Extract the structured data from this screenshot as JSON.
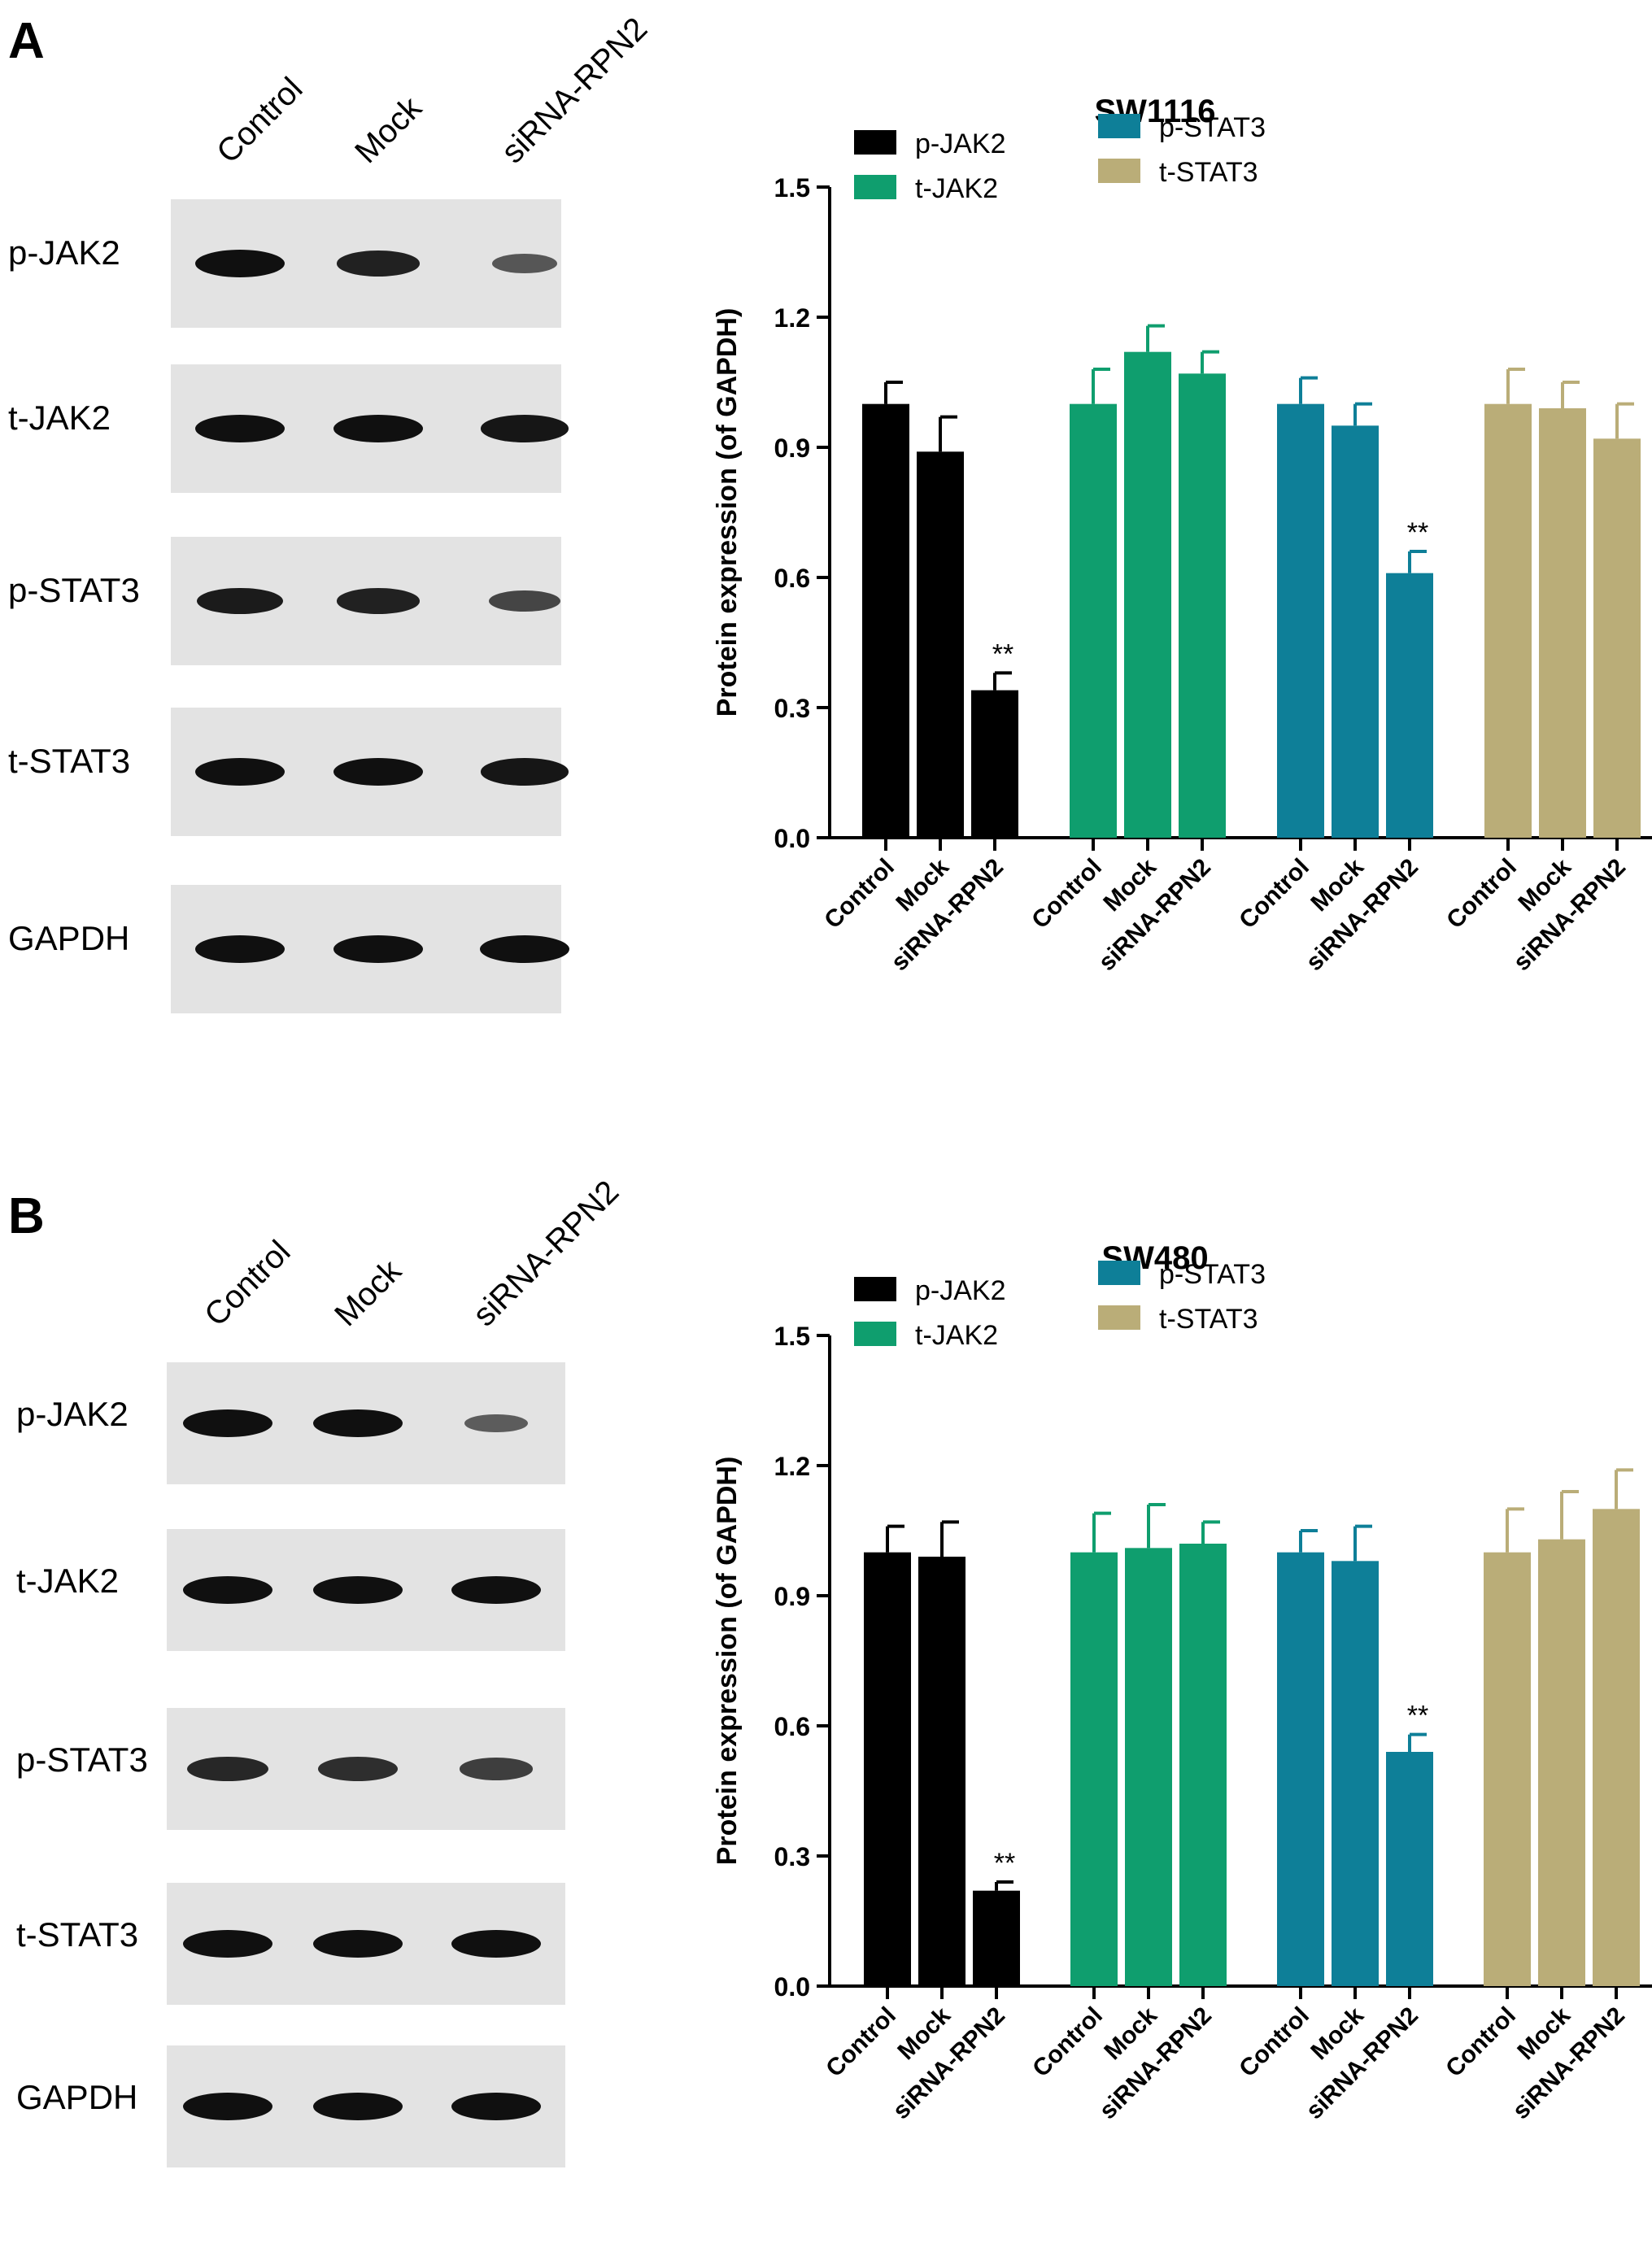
{
  "panels": [
    {
      "letter": "A",
      "blot": {
        "lanes": [
          "Control",
          "Mock",
          "siRNA-RPN2"
        ],
        "rows": [
          {
            "label": "p-JAK2",
            "intensities": [
              1.0,
              0.85,
              0.4
            ]
          },
          {
            "label": "t-JAK2",
            "intensities": [
              1.0,
              1.0,
              0.95
            ]
          },
          {
            "label": "p-STAT3",
            "intensities": [
              0.9,
              0.85,
              0.55
            ]
          },
          {
            "label": "t-STAT3",
            "intensities": [
              1.0,
              1.0,
              0.95
            ]
          },
          {
            "label": "GAPDH",
            "intensities": [
              1.0,
              1.0,
              1.0
            ]
          }
        ]
      }
    },
    {
      "letter": "B",
      "blot": {
        "lanes": [
          "Control",
          "Mock",
          "siRNA-RPN2"
        ],
        "rows": [
          {
            "label": "p-JAK2",
            "intensities": [
              1.0,
              1.0,
              0.35
            ]
          },
          {
            "label": "t-JAK2",
            "intensities": [
              1.0,
              1.0,
              1.0
            ]
          },
          {
            "label": "p-STAT3",
            "intensities": [
              0.8,
              0.75,
              0.6
            ]
          },
          {
            "label": "t-STAT3",
            "intensities": [
              1.0,
              1.0,
              1.0
            ]
          },
          {
            "label": "GAPDH",
            "intensities": [
              1.0,
              1.0,
              1.0
            ]
          }
        ]
      }
    }
  ],
  "chart_data": [
    {
      "type": "bar",
      "title": "SW1116",
      "ylabel": "Protein expression (of GAPDH)",
      "ylim": [
        0,
        1.5
      ],
      "yticks": [
        "0.0",
        "0.3",
        "0.6",
        "0.9",
        "1.2",
        "1.5"
      ],
      "categories": [
        "Control",
        "Mock",
        "siRNA-RPN2"
      ],
      "legend_position": "top",
      "series": [
        {
          "name": "p-JAK2",
          "color": "#000000",
          "values": [
            1.0,
            0.89,
            0.34
          ],
          "errors": [
            0.05,
            0.08,
            0.04
          ],
          "annotations": [
            "",
            "",
            "**"
          ]
        },
        {
          "name": "t-JAK2",
          "color": "#0f9e6e",
          "values": [
            1.0,
            1.12,
            1.07
          ],
          "errors": [
            0.08,
            0.06,
            0.05
          ],
          "annotations": [
            "",
            "",
            ""
          ]
        },
        {
          "name": "p-STAT3",
          "color": "#0e7f98",
          "values": [
            1.0,
            0.95,
            0.61
          ],
          "errors": [
            0.06,
            0.05,
            0.05
          ],
          "annotations": [
            "",
            "",
            "**"
          ]
        },
        {
          "name": "t-STAT3",
          "color": "#baad78",
          "values": [
            1.0,
            0.99,
            0.92
          ],
          "errors": [
            0.08,
            0.06,
            0.08
          ],
          "annotations": [
            "",
            "",
            ""
          ]
        }
      ]
    },
    {
      "type": "bar",
      "title": "SW480",
      "ylabel": "Protein expression (of GAPDH)",
      "ylim": [
        0,
        1.5
      ],
      "yticks": [
        "0.0",
        "0.3",
        "0.6",
        "0.9",
        "1.2",
        "1.5"
      ],
      "categories": [
        "Control",
        "Mock",
        "siRNA-RPN2"
      ],
      "legend_position": "top",
      "series": [
        {
          "name": "p-JAK2",
          "color": "#000000",
          "values": [
            1.0,
            0.99,
            0.22
          ],
          "errors": [
            0.06,
            0.08,
            0.02
          ],
          "annotations": [
            "",
            "",
            "**"
          ]
        },
        {
          "name": "t-JAK2",
          "color": "#0f9e6e",
          "values": [
            1.0,
            1.01,
            1.02
          ],
          "errors": [
            0.09,
            0.1,
            0.05
          ],
          "annotations": [
            "",
            "",
            ""
          ]
        },
        {
          "name": "p-STAT3",
          "color": "#0e7f98",
          "values": [
            1.0,
            0.98,
            0.54
          ],
          "errors": [
            0.05,
            0.08,
            0.04
          ],
          "annotations": [
            "",
            "",
            "**"
          ]
        },
        {
          "name": "t-STAT3",
          "color": "#baad78",
          "values": [
            1.0,
            1.03,
            1.1
          ],
          "errors": [
            0.1,
            0.11,
            0.09
          ],
          "annotations": [
            "",
            "",
            ""
          ]
        }
      ]
    }
  ]
}
